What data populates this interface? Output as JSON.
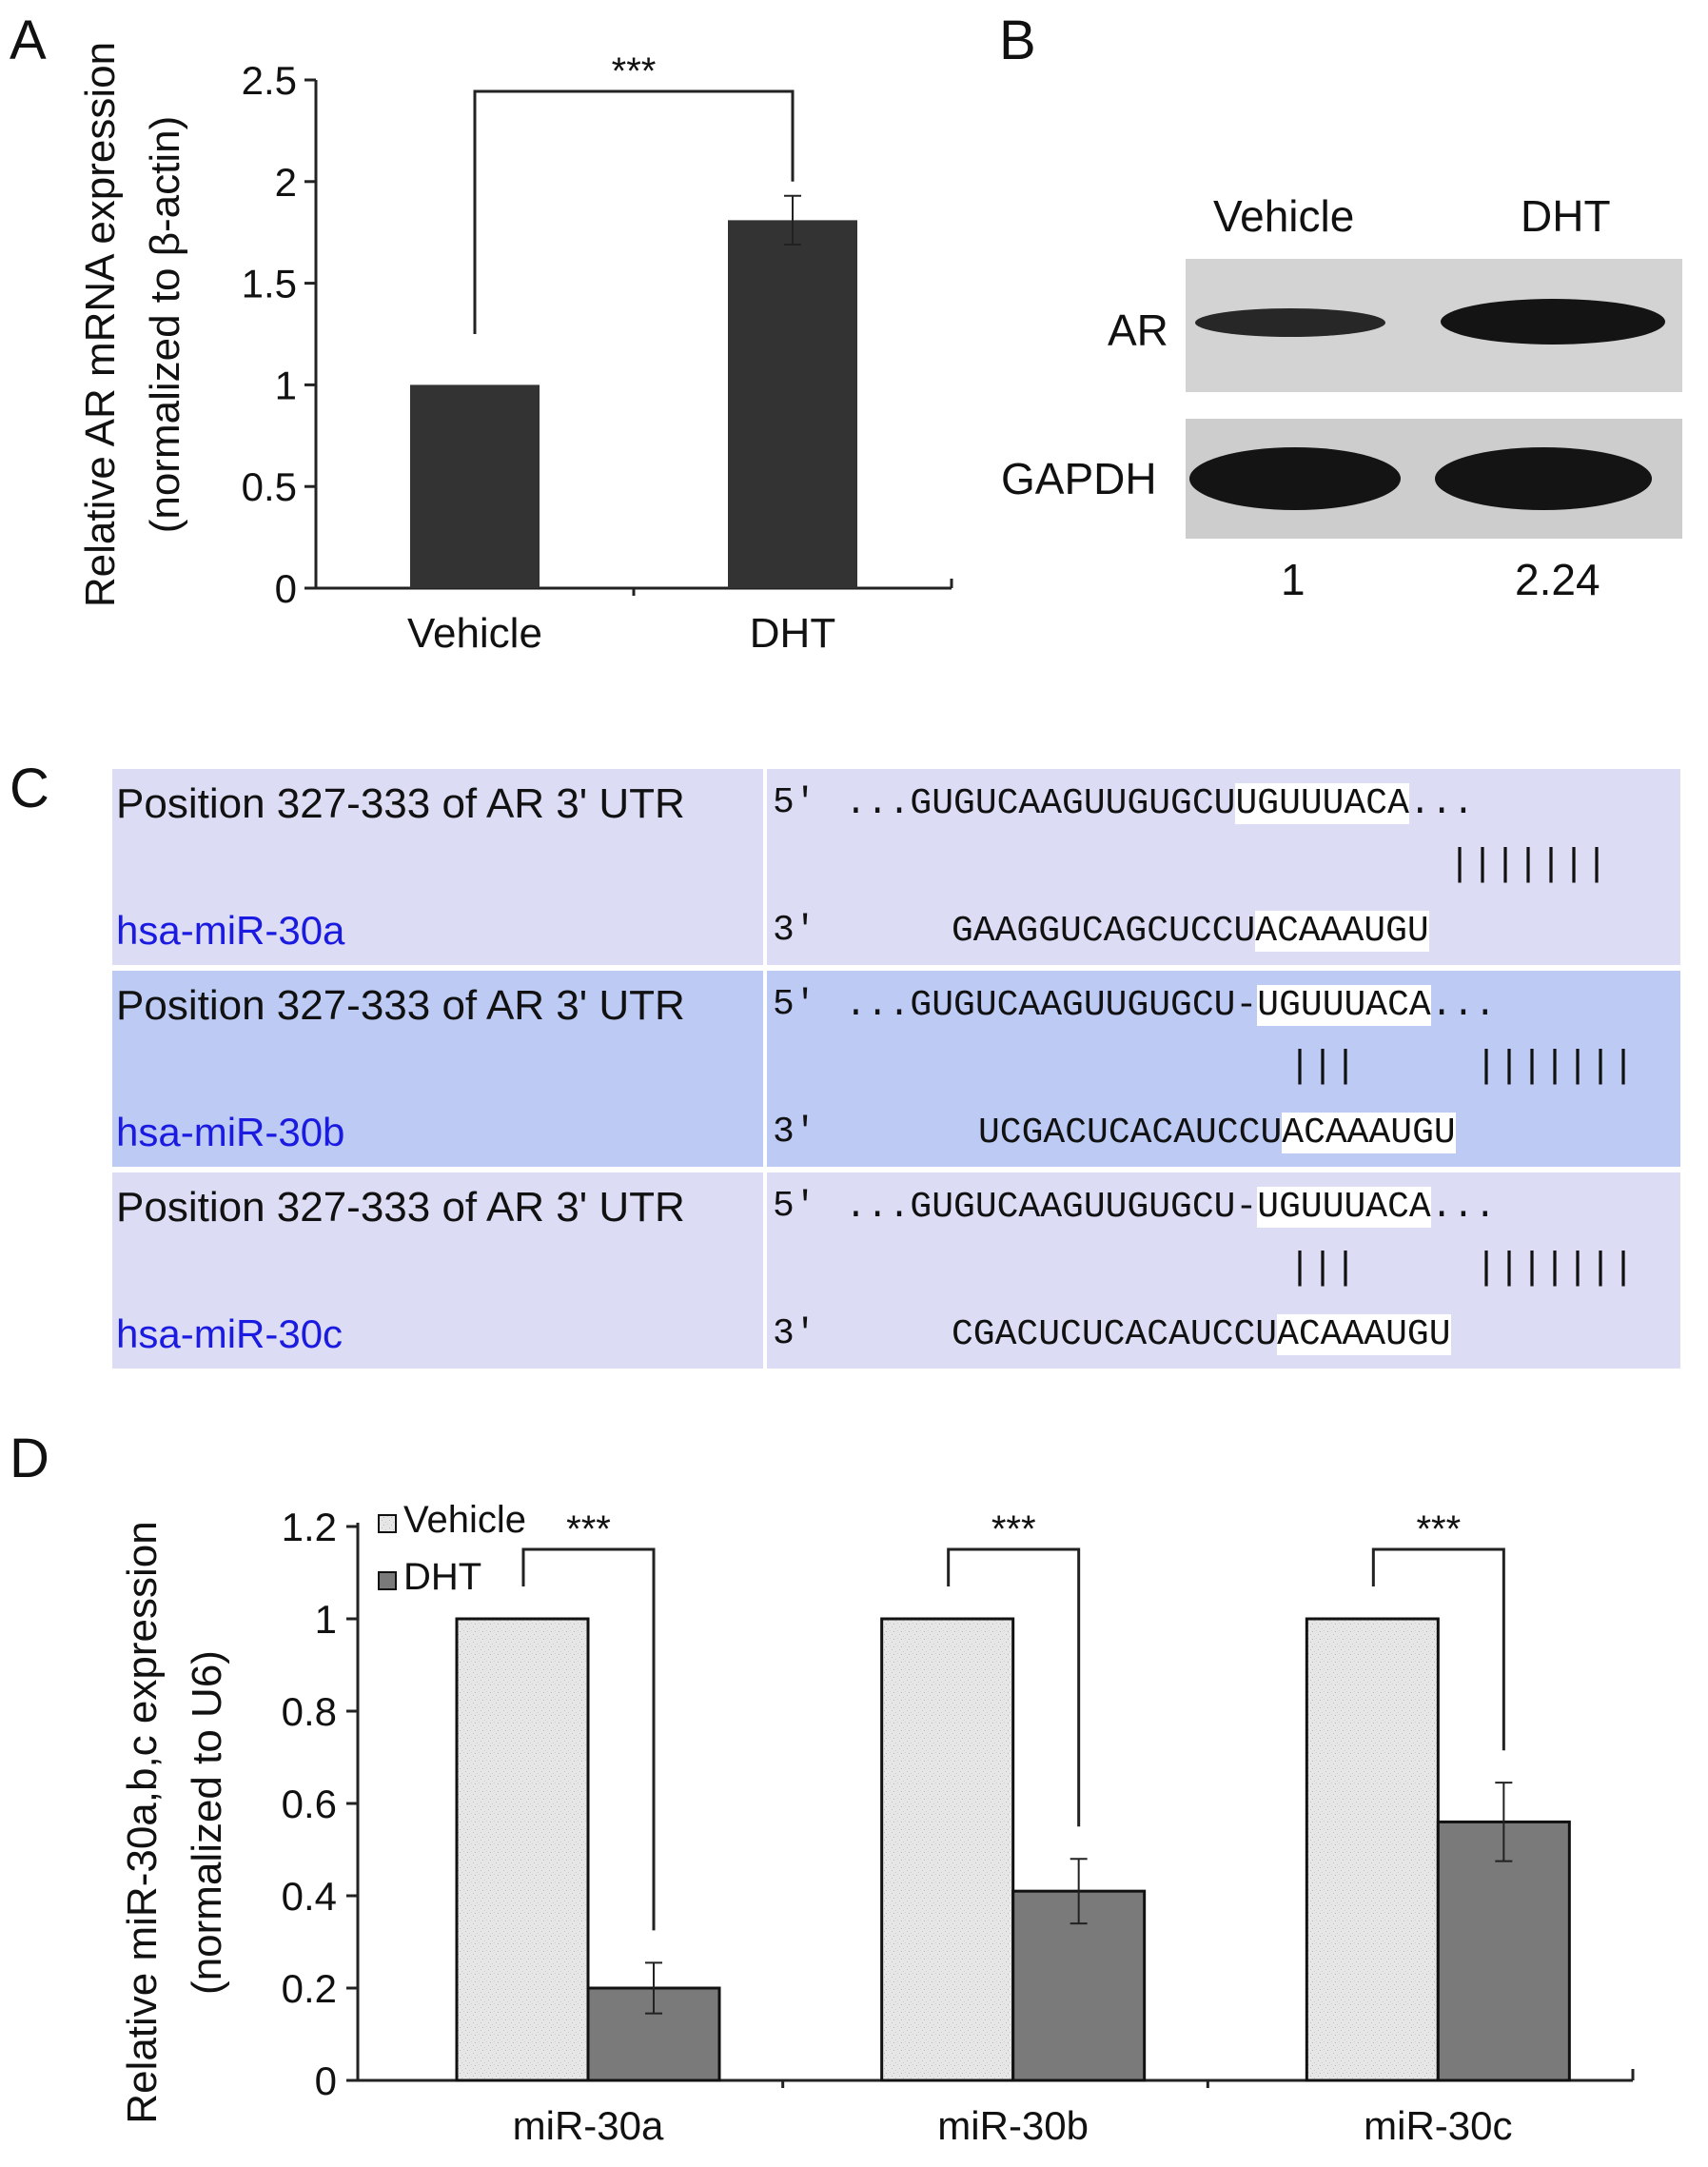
{
  "panels": {
    "a": "A",
    "b": "B",
    "c": "C",
    "d": "D"
  },
  "chart_data": [
    {
      "panel": "A",
      "type": "bar",
      "categories": [
        "Vehicle",
        "DHT"
      ],
      "values": [
        1.0,
        1.81
      ],
      "errors": [
        0,
        0.12
      ],
      "ylabel_line1": "Relative AR mRNA expression",
      "ylabel_line2": "(normalized to β-actin)",
      "ylim": [
        0,
        2.5
      ],
      "yticks": [
        "0",
        "0.5",
        "1",
        "1.5",
        "2",
        "2.5"
      ],
      "significance": "***",
      "bar_color": "#333333",
      "grid": false
    },
    {
      "panel": "D",
      "type": "bar",
      "categories": [
        "miR-30a",
        "miR-30b",
        "miR-30c"
      ],
      "series": [
        {
          "name": "Vehicle",
          "values": [
            1.0,
            1.0,
            1.0
          ],
          "errors": [
            0,
            0,
            0
          ],
          "color": "#e4e4e4"
        },
        {
          "name": "DHT",
          "values": [
            0.2,
            0.41,
            0.56
          ],
          "errors": [
            0.055,
            0.07,
            0.085
          ],
          "color": "#7a7a7a"
        }
      ],
      "ylabel_line1": "Relative miR-30a,b,c expression",
      "ylabel_line2": "(normalized to U6)",
      "ylim": [
        0,
        1.2
      ],
      "yticks": [
        "0",
        "0.2",
        "0.4",
        "0.6",
        "0.8",
        "1",
        "1.2"
      ],
      "significance": [
        "***",
        "***",
        "***"
      ],
      "legend_position": "top-left",
      "grid": false
    }
  ],
  "blot": {
    "lanes": [
      "Vehicle",
      "DHT"
    ],
    "rows": [
      "AR",
      "GAPDH"
    ],
    "quant": [
      "1",
      "2.24"
    ]
  },
  "alignment": [
    {
      "position_label": "Position 327-333 of AR 3' UTR",
      "mirna": "hsa-miR-30a",
      "five_prime": "5'",
      "three_prime": "3'",
      "top_pre": "...GUGUCAAGUUGUGCU",
      "top_seed": "UGUUUACA",
      "top_post": "...",
      "pairs_a": "",
      "pairs_b": "|||||||",
      "bottom_pre": "GAAGGUCAGCUCCU",
      "bottom_seed": "ACAAAUGU"
    },
    {
      "position_label": "Position 327-333 of AR 3' UTR",
      "mirna": "hsa-miR-30b",
      "five_prime": "5'",
      "three_prime": "3'",
      "top_pre": "...GUGUCAAGUUGUGCU-",
      "top_seed": "UGUUUACA",
      "top_post": "...",
      "pairs_a": "|||",
      "pairs_b": "|||||||",
      "bottom_pre": "UCGACUCACAUCCU",
      "bottom_seed": "ACAAAUGU"
    },
    {
      "position_label": "Position 327-333 of AR 3' UTR",
      "mirna": "hsa-miR-30c",
      "five_prime": "5'",
      "three_prime": "3'",
      "top_pre": "...GUGUCAAGUUGUGCU-",
      "top_seed": "UGUUUACA",
      "top_post": "...",
      "pairs_a": "|||",
      "pairs_b": "|||||||",
      "bottom_pre": "CGACUCUCACAUCCU",
      "bottom_seed": "ACAAAUGU"
    }
  ]
}
